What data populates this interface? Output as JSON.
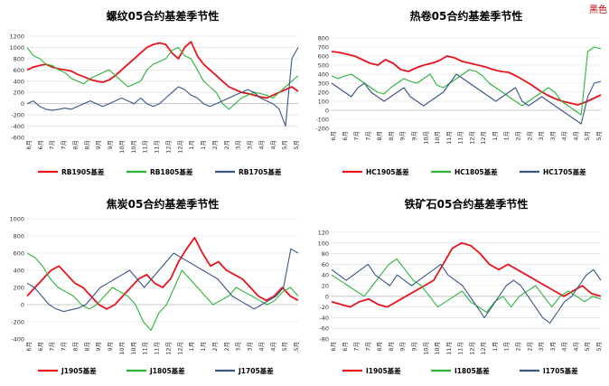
{
  "corner_label": "黑色",
  "colors": {
    "red": "#e8141c",
    "green": "#2db43a",
    "blue": "#3b5588",
    "grid": "#d9d9d9",
    "axis": "#bfbfbf"
  },
  "chart_data": [
    {
      "type": "line",
      "title": "螺纹05合约基差季节性",
      "ylim": [
        -600,
        1200
      ],
      "yticks": [
        -600,
        -400,
        -200,
        0,
        200,
        400,
        600,
        800,
        1000,
        1200
      ],
      "x_tick_labels": [
        "6月",
        "6月",
        "7月",
        "7月",
        "8月",
        "8月",
        "9月",
        "9月",
        "10月",
        "10月",
        "11月",
        "11月",
        "12月",
        "12月",
        "1月",
        "1月",
        "2月",
        "2月",
        "3月",
        "3月",
        "4月",
        "4月",
        "5月",
        "5月"
      ],
      "legend": "bottom",
      "series": [
        {
          "name": "RB1905基差",
          "color": "red",
          "values": [
            600,
            650,
            680,
            700,
            650,
            620,
            600,
            580,
            520,
            480,
            430,
            400,
            380,
            420,
            500,
            600,
            700,
            800,
            900,
            1000,
            1050,
            1080,
            1050,
            900,
            800,
            1000,
            1100,
            850,
            700,
            600,
            500,
            400,
            300,
            250,
            200,
            180,
            150,
            120,
            100,
            150,
            200,
            250,
            300,
            220
          ]
        },
        {
          "name": "RB1805基差",
          "color": "green",
          "values": [
            1000,
            850,
            800,
            700,
            680,
            600,
            550,
            450,
            400,
            350,
            450,
            500,
            550,
            600,
            500,
            400,
            300,
            350,
            400,
            600,
            700,
            750,
            800,
            950,
            1000,
            850,
            800,
            600,
            400,
            300,
            200,
            0,
            -100,
            0,
            100,
            150,
            200,
            180,
            150,
            100,
            200,
            300,
            400,
            500
          ]
        },
        {
          "name": "RB1705基差",
          "color": "blue",
          "values": [
            0,
            50,
            -50,
            -100,
            -120,
            -100,
            -80,
            -100,
            -50,
            0,
            50,
            0,
            -50,
            0,
            50,
            100,
            50,
            0,
            100,
            0,
            -50,
            0,
            100,
            200,
            300,
            250,
            150,
            100,
            0,
            -50,
            0,
            50,
            100,
            150,
            200,
            250,
            200,
            100,
            50,
            0,
            -100,
            -400,
            800,
            1000
          ]
        }
      ]
    },
    {
      "type": "line",
      "title": "热卷05合约基差季节性",
      "ylim": [
        -200,
        800
      ],
      "yticks": [
        -200,
        -100,
        0,
        100,
        200,
        300,
        400,
        500,
        600,
        700,
        800
      ],
      "x_tick_labels": [
        "6月",
        "6月",
        "7月",
        "7月",
        "8月",
        "8月",
        "9月",
        "9月",
        "10月",
        "10月",
        "11月",
        "11月",
        "12月",
        "12月",
        "1月",
        "1月",
        "2月",
        "2月",
        "3月",
        "3月",
        "4月",
        "4月",
        "5月",
        "5月"
      ],
      "legend": "bottom",
      "series": [
        {
          "name": "HC1905基差",
          "color": "red",
          "values": [
            650,
            640,
            620,
            600,
            560,
            520,
            500,
            560,
            520,
            450,
            430,
            470,
            500,
            520,
            550,
            600,
            580,
            540,
            520,
            500,
            480,
            450,
            430,
            420,
            380,
            330,
            280,
            220,
            170,
            130,
            100,
            80,
            60,
            90,
            130,
            170
          ]
        },
        {
          "name": "HC1805基差",
          "color": "green",
          "values": [
            380,
            350,
            380,
            400,
            350,
            300,
            250,
            200,
            180,
            250,
            300,
            350,
            320,
            300,
            350,
            400,
            280,
            250,
            300,
            350,
            400,
            450,
            430,
            380,
            300,
            250,
            200,
            150,
            100,
            50,
            100,
            150,
            200,
            250,
            200,
            100,
            50,
            0,
            -50,
            650,
            700,
            680
          ]
        },
        {
          "name": "HC1705基差",
          "color": "blue",
          "values": [
            300,
            250,
            200,
            150,
            250,
            300,
            200,
            150,
            100,
            150,
            200,
            250,
            150,
            100,
            50,
            100,
            150,
            200,
            300,
            400,
            350,
            300,
            250,
            200,
            150,
            100,
            150,
            200,
            250,
            100,
            50,
            100,
            150,
            100,
            50,
            0,
            -50,
            -100,
            -150,
            150,
            300,
            320
          ]
        }
      ]
    },
    {
      "type": "line",
      "title": "焦炭05合约基差季节性",
      "ylim": [
        -400,
        1000
      ],
      "yticks": [
        -400,
        -200,
        0,
        200,
        400,
        600,
        800,
        1000
      ],
      "x_tick_labels": [
        "6月",
        "6月",
        "7月",
        "7月",
        "8月",
        "8月",
        "9月",
        "9月",
        "10月",
        "10月",
        "11月",
        "11月",
        "12月",
        "12月",
        "1月",
        "1月",
        "2月",
        "2月",
        "3月",
        "3月",
        "4月",
        "4月",
        "5月",
        "5月"
      ],
      "legend": "bottom",
      "series": [
        {
          "name": "J1905基差",
          "color": "red",
          "values": [
            100,
            200,
            300,
            400,
            450,
            350,
            250,
            200,
            100,
            0,
            -50,
            0,
            100,
            200,
            300,
            350,
            250,
            200,
            300,
            500,
            650,
            780,
            600,
            450,
            500,
            400,
            350,
            300,
            200,
            100,
            50,
            100,
            200,
            100,
            50
          ]
        },
        {
          "name": "J1805基差",
          "color": "green",
          "values": [
            600,
            550,
            450,
            300,
            200,
            150,
            100,
            0,
            -50,
            0,
            100,
            200,
            150,
            100,
            0,
            -200,
            -300,
            -100,
            0,
            200,
            400,
            300,
            200,
            100,
            0,
            50,
            100,
            200,
            150,
            100,
            50,
            0,
            50,
            150,
            200,
            100
          ]
        },
        {
          "name": "J1705基差",
          "color": "blue",
          "values": [
            250,
            200,
            100,
            0,
            -50,
            -80,
            -60,
            -40,
            0,
            100,
            200,
            250,
            300,
            350,
            400,
            300,
            200,
            300,
            400,
            500,
            600,
            550,
            500,
            450,
            400,
            350,
            300,
            200,
            100,
            50,
            0,
            -50,
            0,
            50,
            100,
            200,
            650,
            600
          ]
        }
      ]
    },
    {
      "type": "line",
      "title": "铁矿石05合约基差季节性",
      "ylim": [
        -80,
        120
      ],
      "yticks": [
        -80,
        -60,
        -40,
        -20,
        0,
        20,
        40,
        60,
        80,
        100,
        120
      ],
      "x_tick_labels": [
        "6月",
        "6月",
        "7月",
        "7月",
        "8月",
        "8月",
        "9月",
        "9月",
        "10月",
        "10月",
        "11月",
        "11月",
        "12月",
        "12月",
        "1月",
        "1月",
        "2月",
        "2月",
        "3月",
        "3月",
        "4月",
        "4月",
        "5月",
        "5月"
      ],
      "legend": "bottom",
      "series": [
        {
          "name": "I1905基差",
          "color": "red",
          "values": [
            -10,
            -15,
            -20,
            -10,
            -5,
            -15,
            -20,
            -10,
            0,
            10,
            20,
            30,
            60,
            90,
            100,
            95,
            80,
            60,
            50,
            60,
            50,
            40,
            30,
            20,
            10,
            0,
            10,
            20,
            5,
            0
          ]
        },
        {
          "name": "I1805基差",
          "color": "green",
          "values": [
            40,
            30,
            20,
            10,
            0,
            20,
            40,
            60,
            70,
            50,
            30,
            20,
            0,
            -20,
            -10,
            0,
            10,
            -10,
            -20,
            -30,
            -10,
            0,
            -20,
            0,
            10,
            20,
            0,
            -20,
            0,
            10,
            0,
            -10,
            0,
            -5
          ]
        },
        {
          "name": "I1705基差",
          "color": "blue",
          "values": [
            50,
            40,
            30,
            40,
            50,
            60,
            40,
            30,
            20,
            40,
            30,
            20,
            30,
            40,
            50,
            60,
            40,
            30,
            20,
            0,
            -20,
            -40,
            -20,
            0,
            20,
            30,
            20,
            0,
            -20,
            -40,
            -50,
            -30,
            -10,
            0,
            20,
            40,
            50,
            30
          ]
        }
      ]
    }
  ]
}
